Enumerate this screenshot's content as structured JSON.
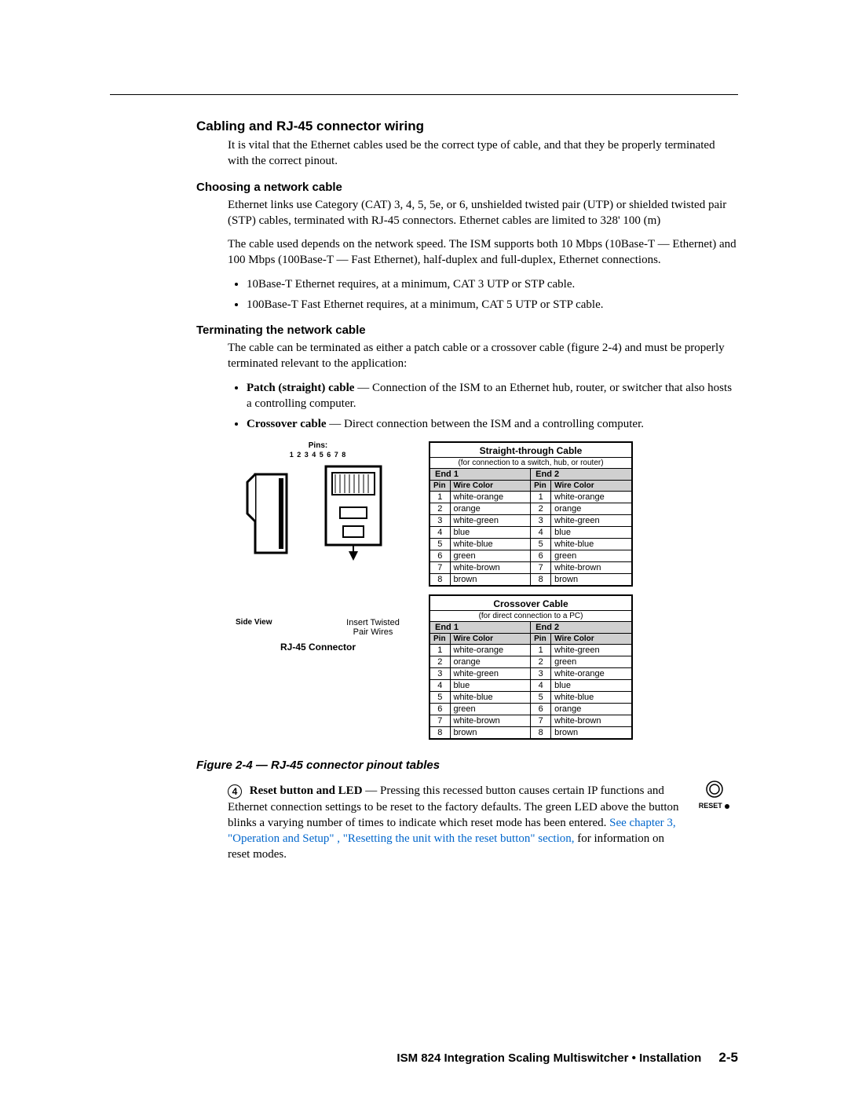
{
  "section_title": "Cabling and RJ-45 connector wiring",
  "intro": "It is vital that the Ethernet cables used be the correct type of cable, and that they be properly terminated with the correct pinout.",
  "choosing_heading": "Choosing a network cable",
  "choosing_p1": "Ethernet links use Category (CAT) 3, 4, 5, 5e, or 6, unshielded twisted pair (UTP) or shielded twisted pair (STP) cables, terminated with RJ-45 connectors.  Ethernet cables are limited to 328'  100 (m)",
  "choosing_p2": "The cable used depends on the network speed.  The ISM supports both 10 Mbps (10Base-T — Ethernet) and 100 Mbps (100Base-T — Fast Ethernet), half-duplex and full-duplex, Ethernet connections.",
  "choosing_bullet1": "10Base-T Ethernet requires, at a minimum, CAT 3 UTP or STP cable.",
  "choosing_bullet2": "100Base-T Fast Ethernet requires, at a minimum, CAT 5 UTP or STP cable.",
  "term_heading": "Terminating the network cable",
  "term_p1": "The cable can be terminated as either a patch cable or a crossover cable (figure 2-4) and must be properly terminated relevant to the application:",
  "term_b1_lead": "Patch (straight) cable",
  "term_b1_rest": " — Connection of the ISM to an Ethernet hub, router, or switcher that also hosts a controlling computer.",
  "term_b2_lead": "Crossover cable",
  "term_b2_rest": " — Direct connection between the ISM and a controlling computer.",
  "connector": {
    "pins_label": "Pins:",
    "pins_nums": "1 2 3 4 5 6 7 8",
    "side_view": "Side View",
    "insert": "Insert Twisted Pair Wires",
    "caption": "RJ-45 Connector"
  },
  "straight_table": {
    "title": "Straight-through Cable",
    "subtitle": "(for connection to a switch, hub, or router)",
    "end1": "End 1",
    "end2": "End 2",
    "col_pin": "Pin",
    "col_wire": "Wire Color",
    "rows": [
      [
        "1",
        "white-orange",
        "1",
        "white-orange"
      ],
      [
        "2",
        "orange",
        "2",
        "orange"
      ],
      [
        "3",
        "white-green",
        "3",
        "white-green"
      ],
      [
        "4",
        "blue",
        "4",
        "blue"
      ],
      [
        "5",
        "white-blue",
        "5",
        "white-blue"
      ],
      [
        "6",
        "green",
        "6",
        "green"
      ],
      [
        "7",
        "white-brown",
        "7",
        "white-brown"
      ],
      [
        "8",
        "brown",
        "8",
        "brown"
      ]
    ]
  },
  "cross_table": {
    "title": "Crossover Cable",
    "subtitle": "(for direct connection to a PC)",
    "end1": "End 1",
    "end2": "End 2",
    "col_pin": "Pin",
    "col_wire": "Wire Color",
    "rows": [
      [
        "1",
        "white-orange",
        "1",
        "white-green"
      ],
      [
        "2",
        "orange",
        "2",
        "green"
      ],
      [
        "3",
        "white-green",
        "3",
        "white-orange"
      ],
      [
        "4",
        "blue",
        "4",
        "blue"
      ],
      [
        "5",
        "white-blue",
        "5",
        "white-blue"
      ],
      [
        "6",
        "green",
        "6",
        "orange"
      ],
      [
        "7",
        "white-brown",
        "7",
        "white-brown"
      ],
      [
        "8",
        "brown",
        "8",
        "brown"
      ]
    ]
  },
  "figure_caption": "Figure 2-4 — RJ-45 connector pinout tables",
  "reset": {
    "num": "4",
    "lead": "Reset button and LED",
    "text1": " — Pressing this recessed button causes certain IP functions and Ethernet connection settings to be reset to the factory defaults. The green LED above the button blinks a varying number of times to indicate which reset mode has been entered.  ",
    "link": "See chapter 3, \"Operation and Setup\" , \"Resetting the unit with the reset button\" section,",
    "text2": "  for information on reset modes.",
    "icon_label": "RESET"
  },
  "footer": {
    "text": "ISM 824 Integration Scaling Multiswitcher • Installation",
    "page": "2-5"
  }
}
